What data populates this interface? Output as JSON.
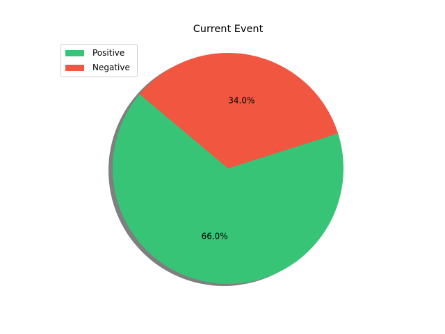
{
  "chart_data": {
    "type": "pie",
    "title": "Current Event",
    "categories": [
      "Positive",
      "Negative"
    ],
    "values": [
      66.0,
      34.0
    ],
    "labels": [
      "66.0%",
      "34.0%"
    ],
    "colors": [
      "#38c477",
      "#f15640"
    ],
    "legend": {
      "placement": "top-left",
      "entries": [
        "Positive",
        "Negative"
      ]
    },
    "shadow": true
  }
}
